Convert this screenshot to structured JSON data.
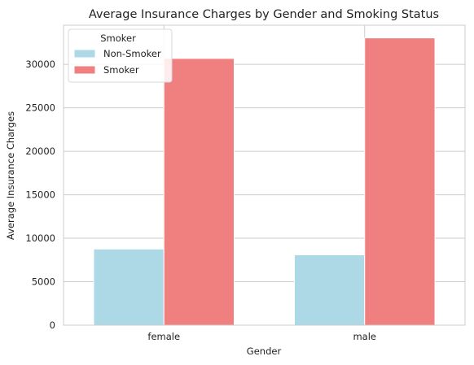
{
  "chart_data": {
    "type": "bar",
    "title": "Average Insurance Charges by Gender and Smoking Status",
    "xlabel": "Gender",
    "ylabel": "Average Insurance Charges",
    "categories": [
      "female",
      "male"
    ],
    "series": [
      {
        "name": "Non-Smoker",
        "values": [
          8760,
          8090
        ],
        "color": "#add8e6"
      },
      {
        "name": "Smoker",
        "values": [
          30680,
          33040
        ],
        "color": "#f08080"
      }
    ],
    "ylim": [
      0,
      34500
    ],
    "yticks": [
      0,
      5000,
      10000,
      15000,
      20000,
      25000,
      30000
    ],
    "ytick_labels": [
      "0",
      "5000",
      "10000",
      "15000",
      "20000",
      "25000",
      "30000"
    ],
    "grid": true,
    "legend": {
      "title": "Smoker",
      "placement": "top-left"
    }
  }
}
